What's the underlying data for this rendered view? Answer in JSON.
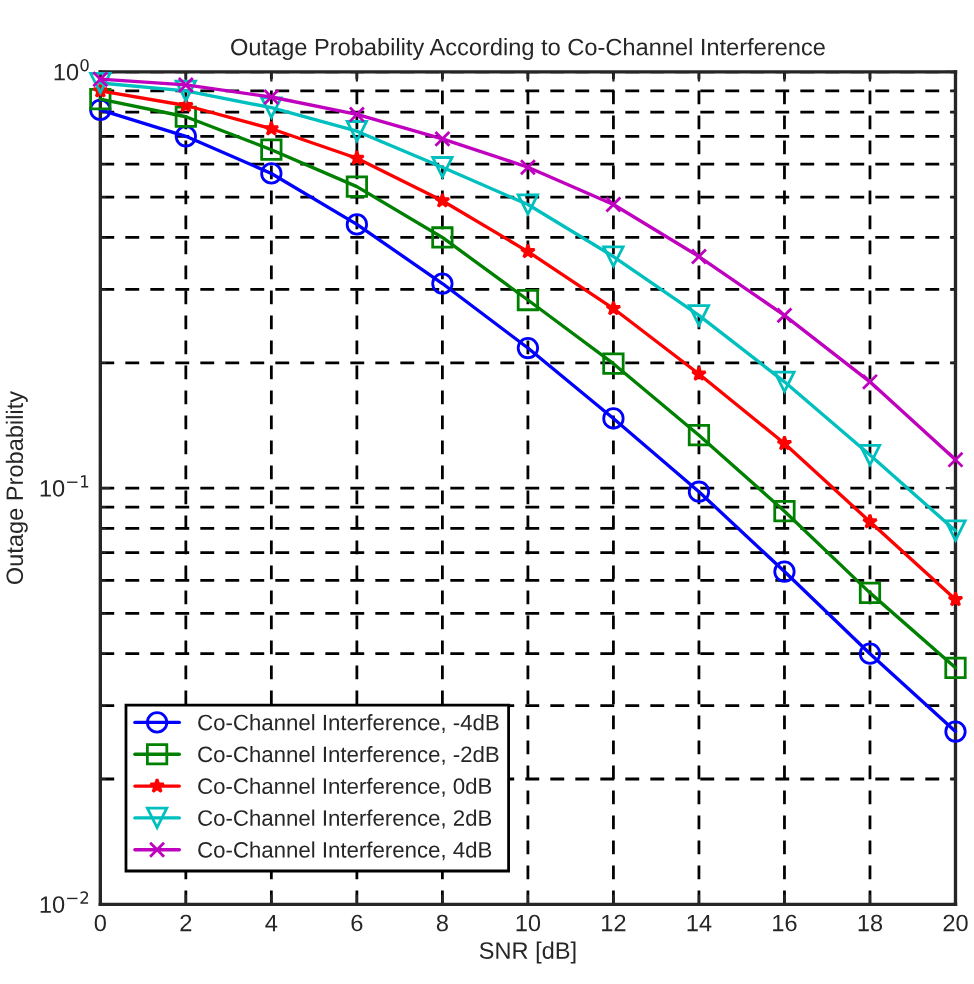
{
  "chart_data": {
    "type": "line",
    "title": "Outage Probability According to Co-Channel Interference",
    "xlabel": "SNR [dB]",
    "ylabel": "Outage Probability",
    "x": [
      0,
      2,
      4,
      6,
      8,
      10,
      12,
      14,
      16,
      18,
      20
    ],
    "series": [
      {
        "name": "Co-Channel Interference, -4dB",
        "color": "#0000ff",
        "marker": "circle",
        "values": [
          0.81,
          0.7,
          0.57,
          0.43,
          0.31,
          0.217,
          0.147,
          0.098,
          0.063,
          0.04,
          0.026
        ]
      },
      {
        "name": "Co-Channel Interference, -2dB",
        "color": "#008000",
        "marker": "square",
        "values": [
          0.86,
          0.78,
          0.65,
          0.53,
          0.4,
          0.283,
          0.199,
          0.134,
          0.088,
          0.056,
          0.037
        ]
      },
      {
        "name": "Co-Channel Interference, 0dB",
        "color": "#ff0000",
        "marker": "star",
        "values": [
          0.9,
          0.83,
          0.73,
          0.62,
          0.49,
          0.37,
          0.27,
          0.188,
          0.128,
          0.083,
          0.054
        ]
      },
      {
        "name": "Co-Channel Interference, 2dB",
        "color": "#00bfbf",
        "marker": "triangle",
        "values": [
          0.94,
          0.9,
          0.82,
          0.72,
          0.59,
          0.48,
          0.36,
          0.26,
          0.18,
          0.12,
          0.079
        ]
      },
      {
        "name": "Co-Channel Interference, 4dB",
        "color": "#bf00bf",
        "marker": "cross",
        "values": [
          0.96,
          0.93,
          0.87,
          0.79,
          0.69,
          0.59,
          0.48,
          0.36,
          0.26,
          0.18,
          0.117
        ]
      }
    ],
    "log": "y",
    "xlim": [
      0,
      20
    ],
    "xticks": [
      0,
      2,
      4,
      6,
      8,
      10,
      12,
      14,
      16,
      18,
      20
    ],
    "ylim": [
      0.01,
      1
    ],
    "yticks": [
      {
        "value": 0.01,
        "label": "10$^{−2}$"
      },
      {
        "value": 0.1,
        "label": "10$^{−1}$"
      },
      {
        "value": 1,
        "label": "10$^{0}$"
      }
    ],
    "grid": true,
    "legend": "bottom left",
    "line_style": "solid"
  }
}
